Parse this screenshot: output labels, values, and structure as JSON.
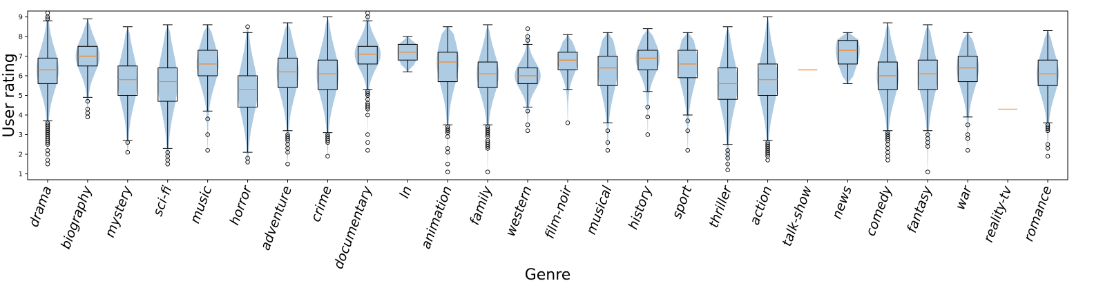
{
  "chart_data": {
    "type": "violin+box",
    "xlabel": "Genre",
    "ylabel": "User rating",
    "ylim": [
      0.7,
      9.3
    ],
    "yticks": [
      1,
      2,
      3,
      4,
      5,
      6,
      7,
      8,
      9
    ],
    "grid": false,
    "colors": {
      "violin": "#aecbe4",
      "median": "#ff7f0e",
      "box": "#000000",
      "flier": "#000000"
    },
    "categories": [
      "drama",
      "biography",
      "mystery",
      "sci-fi",
      "music",
      "horror",
      "adventure",
      "crime",
      "documentary",
      "ln",
      "animation",
      "family",
      "western",
      "film-noir",
      "musical",
      "history",
      "sport",
      "thriller",
      "action",
      "talk-show",
      "news",
      "comedy",
      "fantasy",
      "war",
      "reality-tv",
      "romance"
    ],
    "series": [
      {
        "category": "drama",
        "min": 1.5,
        "max": 9.2,
        "q1": 5.6,
        "median": 6.3,
        "q3": 6.9,
        "whislo": 3.7,
        "whishi": 8.8,
        "max_width": 0.55,
        "fliers": [
          1.5,
          1.7,
          2.0,
          2.2,
          2.5,
          2.6,
          2.7,
          2.8,
          2.9,
          3.0,
          3.1,
          3.2,
          3.3,
          3.4,
          3.5,
          3.6,
          8.9,
          9.0,
          9.2
        ]
      },
      {
        "category": "biography",
        "min": 3.9,
        "max": 8.9,
        "q1": 6.5,
        "median": 7.0,
        "q3": 7.5,
        "whislo": 4.9,
        "whishi": 8.9,
        "max_width": 0.6,
        "fliers": [
          3.9,
          4.1,
          4.3,
          4.7
        ]
      },
      {
        "category": "mystery",
        "min": 2.1,
        "max": 8.5,
        "q1": 5.0,
        "median": 5.8,
        "q3": 6.5,
        "whislo": 2.7,
        "whishi": 8.5,
        "max_width": 0.5,
        "fliers": [
          2.1,
          2.6
        ]
      },
      {
        "category": "sci-fi",
        "min": 1.5,
        "max": 8.6,
        "q1": 4.7,
        "median": 5.7,
        "q3": 6.4,
        "whislo": 2.3,
        "whishi": 8.6,
        "max_width": 0.5,
        "fliers": [
          1.5,
          1.7,
          1.9,
          2.1
        ]
      },
      {
        "category": "music",
        "min": 2.2,
        "max": 8.6,
        "q1": 6.0,
        "median": 6.6,
        "q3": 7.3,
        "whislo": 4.2,
        "whishi": 8.6,
        "max_width": 0.55,
        "fliers": [
          2.2,
          3.0,
          3.8
        ]
      },
      {
        "category": "horror",
        "min": 1.6,
        "max": 8.5,
        "q1": 4.4,
        "median": 5.3,
        "q3": 6.0,
        "whislo": 2.1,
        "whishi": 8.2,
        "max_width": 0.5,
        "fliers": [
          1.6,
          1.8,
          8.5
        ]
      },
      {
        "category": "adventure",
        "min": 1.5,
        "max": 8.7,
        "q1": 5.4,
        "median": 6.2,
        "q3": 6.9,
        "whislo": 3.2,
        "whishi": 8.7,
        "max_width": 0.55,
        "fliers": [
          1.5,
          2.1,
          2.3,
          2.5,
          2.7,
          2.8,
          2.9,
          3.0
        ]
      },
      {
        "category": "crime",
        "min": 1.9,
        "max": 9.0,
        "q1": 5.3,
        "median": 6.1,
        "q3": 6.8,
        "whislo": 3.1,
        "whishi": 9.0,
        "max_width": 0.55,
        "fliers": [
          1.9,
          2.6,
          2.7,
          2.8,
          2.9,
          3.0
        ]
      },
      {
        "category": "documentary",
        "min": 2.2,
        "max": 9.2,
        "q1": 6.6,
        "median": 7.1,
        "q3": 7.5,
        "whislo": 5.3,
        "whishi": 8.8,
        "max_width": 0.65,
        "fliers": [
          2.2,
          2.6,
          3.0,
          4.0,
          4.3,
          4.4,
          4.5,
          4.6,
          4.8,
          5.0,
          5.1,
          5.2,
          9.0,
          9.2
        ]
      },
      {
        "category": "ln",
        "min": 6.2,
        "max": 8.0,
        "q1": 6.8,
        "median": 7.2,
        "q3": 7.6,
        "whislo": 6.2,
        "whishi": 8.0,
        "max_width": 0.5,
        "fliers": []
      },
      {
        "category": "animation",
        "min": 1.1,
        "max": 8.5,
        "q1": 5.7,
        "median": 6.7,
        "q3": 7.2,
        "whislo": 3.5,
        "whishi": 8.5,
        "max_width": 0.55,
        "fliers": [
          1.1,
          1.5,
          2.1,
          2.3,
          2.9,
          3.1,
          3.2,
          3.3,
          3.4
        ]
      },
      {
        "category": "family",
        "min": 1.1,
        "max": 8.6,
        "q1": 5.4,
        "median": 6.1,
        "q3": 6.7,
        "whislo": 3.5,
        "whishi": 8.6,
        "max_width": 0.55,
        "fliers": [
          1.1,
          2.3,
          2.4,
          2.5,
          2.6,
          2.7,
          2.9,
          3.0,
          3.1,
          3.2,
          3.3,
          3.4
        ]
      },
      {
        "category": "western",
        "min": 3.2,
        "max": 8.4,
        "q1": 5.6,
        "median": 6.0,
        "q3": 6.4,
        "whislo": 4.4,
        "whishi": 7.6,
        "max_width": 0.65,
        "fliers": [
          3.2,
          3.5,
          4.2,
          7.8,
          8.0,
          8.4
        ]
      },
      {
        "category": "film-noir",
        "min": 3.6,
        "max": 8.1,
        "q1": 6.3,
        "median": 6.8,
        "q3": 7.2,
        "whislo": 5.3,
        "whishi": 8.1,
        "max_width": 0.5,
        "fliers": [
          3.6
        ]
      },
      {
        "category": "musical",
        "min": 2.2,
        "max": 8.2,
        "q1": 5.5,
        "median": 6.4,
        "q3": 7.0,
        "whislo": 3.6,
        "whishi": 8.2,
        "max_width": 0.5,
        "fliers": [
          2.2,
          2.6,
          3.2
        ]
      },
      {
        "category": "history",
        "min": 3.0,
        "max": 8.4,
        "q1": 6.3,
        "median": 6.9,
        "q3": 7.3,
        "whislo": 5.2,
        "whishi": 8.4,
        "max_width": 0.6,
        "fliers": [
          3.0,
          3.9,
          4.4
        ]
      },
      {
        "category": "sport",
        "min": 2.2,
        "max": 8.2,
        "q1": 5.9,
        "median": 6.6,
        "q3": 7.3,
        "whislo": 4.0,
        "whishi": 8.2,
        "max_width": 0.5,
        "fliers": [
          2.2,
          3.2,
          3.7
        ]
      },
      {
        "category": "thriller",
        "min": 1.2,
        "max": 8.5,
        "q1": 4.8,
        "median": 5.6,
        "q3": 6.4,
        "whislo": 2.5,
        "whishi": 8.5,
        "max_width": 0.5,
        "fliers": [
          1.2,
          1.5,
          1.8,
          2.0,
          2.2
        ]
      },
      {
        "category": "action",
        "min": 1.7,
        "max": 9.0,
        "q1": 5.0,
        "median": 5.8,
        "q3": 6.6,
        "whislo": 2.7,
        "whishi": 9.0,
        "max_width": 0.5,
        "fliers": [
          1.7,
          1.9,
          2.0,
          2.1,
          2.2,
          2.3,
          2.4,
          2.5,
          2.6
        ]
      },
      {
        "category": "talk-show",
        "min": 6.3,
        "max": 6.3,
        "q1": 6.3,
        "median": 6.3,
        "q3": 6.3,
        "whislo": 6.3,
        "whishi": 6.3,
        "max_width": 0,
        "fliers": []
      },
      {
        "category": "news",
        "min": 5.6,
        "max": 8.2,
        "q1": 6.6,
        "median": 7.3,
        "q3": 7.8,
        "whislo": 5.6,
        "whishi": 8.2,
        "max_width": 0.6,
        "fliers": []
      },
      {
        "category": "comedy",
        "min": 1.7,
        "max": 8.7,
        "q1": 5.3,
        "median": 6.0,
        "q3": 6.7,
        "whislo": 3.2,
        "whishi": 8.7,
        "max_width": 0.55,
        "fliers": [
          1.7,
          1.9,
          2.1,
          2.3,
          2.5,
          2.7,
          2.8,
          2.9,
          3.0,
          3.1
        ]
      },
      {
        "category": "fantasy",
        "min": 1.1,
        "max": 8.6,
        "q1": 5.3,
        "median": 6.1,
        "q3": 6.8,
        "whislo": 3.2,
        "whishi": 8.6,
        "max_width": 0.5,
        "fliers": [
          1.1,
          2.4,
          2.6,
          2.8,
          3.0
        ]
      },
      {
        "category": "war",
        "min": 2.2,
        "max": 8.2,
        "q1": 5.7,
        "median": 6.4,
        "q3": 7.0,
        "whislo": 3.9,
        "whishi": 8.2,
        "max_width": 0.55,
        "fliers": [
          2.2,
          2.8,
          3.0,
          3.5
        ]
      },
      {
        "category": "reality-tv",
        "min": 4.3,
        "max": 4.3,
        "q1": 4.3,
        "median": 4.3,
        "q3": 4.3,
        "whislo": 4.3,
        "whishi": 4.3,
        "max_width": 0,
        "fliers": []
      },
      {
        "category": "romance",
        "min": 1.9,
        "max": 8.3,
        "q1": 5.5,
        "median": 6.1,
        "q3": 6.8,
        "whislo": 3.6,
        "whishi": 8.3,
        "max_width": 0.55,
        "fliers": [
          1.9,
          2.3,
          2.5,
          3.2,
          3.3,
          3.4,
          3.5
        ]
      }
    ]
  }
}
